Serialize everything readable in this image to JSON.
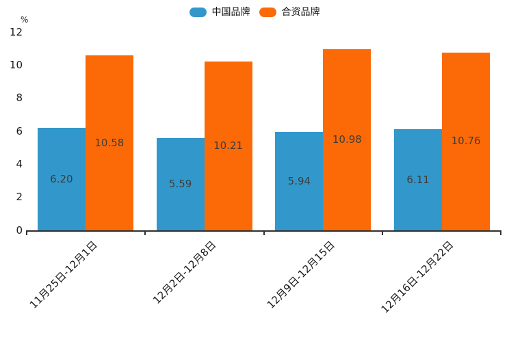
{
  "chart_data": {
    "type": "bar",
    "title": "",
    "unit_label": "%",
    "categories": [
      "11月25日-12月1日",
      "12月2日-12月8日",
      "12月9日-12月15日",
      "12月16日-12月22日"
    ],
    "series": [
      {
        "name": "中国品牌",
        "color": "#3298CB",
        "values": [
          6.2,
          5.59,
          5.94,
          6.11
        ],
        "value_labels": [
          "6.20",
          "5.59",
          "5.94",
          "6.11"
        ]
      },
      {
        "name": "合资品牌",
        "color": "#FB6A07",
        "values": [
          10.58,
          10.21,
          10.98,
          10.76
        ],
        "value_labels": [
          "10.58",
          "10.21",
          "10.98",
          "10.76"
        ]
      }
    ],
    "xlabel": "",
    "ylabel": "%",
    "ylim": [
      0,
      12
    ],
    "yticks": [
      0,
      2,
      4,
      6,
      8,
      10,
      12
    ],
    "grid": false,
    "legend_position": "top",
    "axis_color": "#2f2f2f",
    "value_label_color": "#3d3d3d",
    "x_label_rotation_deg": 45
  }
}
